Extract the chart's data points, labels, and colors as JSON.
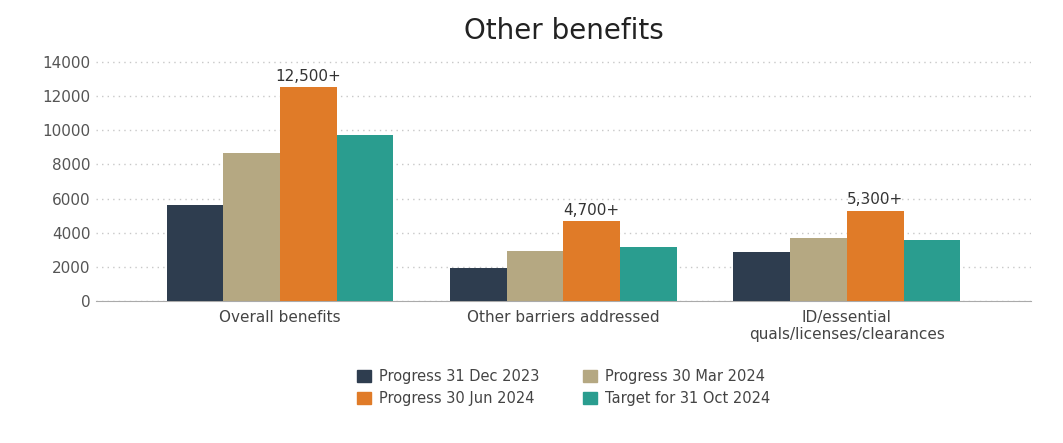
{
  "title": "Other benefits",
  "categories": [
    "Overall benefits",
    "Other barriers addressed",
    "ID/essential\nquals/licenses/clearances"
  ],
  "series": {
    "Progress 31 Dec 2023": [
      5600,
      1950,
      2900
    ],
    "Progress 30 Mar 2024": [
      8650,
      2950,
      3700
    ],
    "Progress 30 Jun 2024": [
      12500,
      4700,
      5300
    ],
    "Target for 31 Oct 2024": [
      9700,
      3150,
      3600
    ]
  },
  "colors": {
    "Progress 31 Dec 2023": "#2e3d4f",
    "Progress 30 Mar 2024": "#b5a882",
    "Progress 30 Jun 2024": "#e07b28",
    "Target for 31 Oct 2024": "#2a9d8f"
  },
  "annotations": [
    {
      "cat_idx": 0,
      "label": "12,500+"
    },
    {
      "cat_idx": 1,
      "label": "4,700+"
    },
    {
      "cat_idx": 2,
      "label": "5,300+"
    }
  ],
  "ylim": [
    0,
    14500
  ],
  "yticks": [
    0,
    2000,
    4000,
    6000,
    8000,
    10000,
    12000,
    14000
  ],
  "background_color": "#ffffff",
  "grid_color": "#c8c8c8",
  "title_fontsize": 20,
  "tick_fontsize": 11,
  "legend_fontsize": 10.5,
  "annotation_fontsize": 11
}
